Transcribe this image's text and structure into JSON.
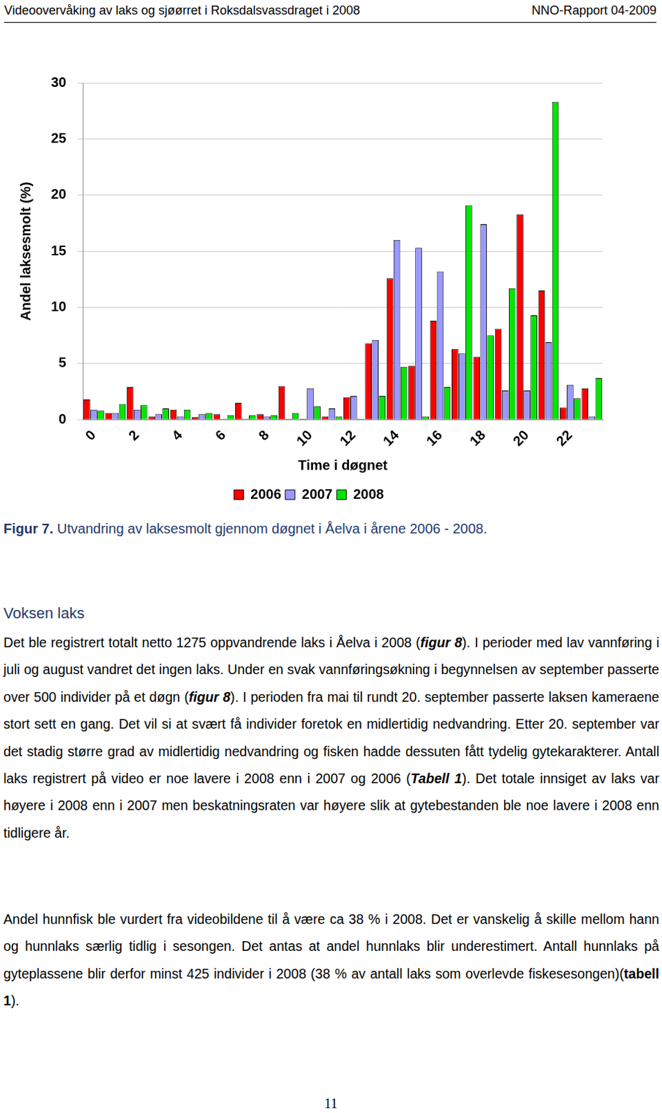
{
  "header": {
    "left": "Videoovervåking av laks og sjøørret i Roksdalsvassdraget i 2008",
    "right": "NNO-Rapport 04-2009"
  },
  "chart_data": {
    "type": "bar",
    "y_label": "Andel laksesmolt (%)",
    "x_label": "Time i døgnet",
    "categories": [
      0,
      null,
      2,
      null,
      4,
      null,
      6,
      null,
      8,
      null,
      10,
      null,
      12,
      null,
      14,
      null,
      16,
      null,
      18,
      null,
      20,
      null,
      22,
      null
    ],
    "series": [
      {
        "name": "2006",
        "color": "#ff0000",
        "values": [
          1.8,
          0.6,
          2.9,
          0.3,
          0.9,
          0.2,
          0.5,
          1.5,
          0.5,
          3.0,
          0.1,
          0.3,
          2.0,
          6.8,
          12.6,
          4.8,
          8.8,
          6.3,
          5.6,
          8.1,
          18.3,
          11.5,
          1.1,
          2.8
        ]
      },
      {
        "name": "2007",
        "color": "#9999ff",
        "values": [
          0.9,
          0.6,
          0.9,
          0.5,
          0.3,
          0.5,
          0.1,
          0.1,
          0.3,
          0.1,
          2.8,
          1.0,
          2.1,
          7.1,
          16.0,
          15.3,
          13.2,
          5.9,
          17.4,
          2.6,
          2.6,
          6.9,
          3.1,
          0.3
        ]
      },
      {
        "name": "2008",
        "color": "#00e600",
        "values": [
          0.8,
          1.4,
          1.3,
          1.0,
          0.9,
          0.6,
          0.4,
          0.4,
          0.4,
          0.6,
          1.2,
          0.3,
          0.1,
          2.1,
          4.7,
          0.3,
          2.9,
          19.1,
          7.5,
          11.7,
          9.3,
          28.3,
          1.9,
          3.7
        ]
      }
    ],
    "ylim": [
      0,
      30
    ],
    "yticks": [
      0,
      5,
      10,
      15,
      20,
      25,
      30
    ],
    "grid": true,
    "legend": "bottom"
  },
  "caption": {
    "label": "Figur 7.",
    "text": " Utvandring av laksesmolt gjennom døgnet i Åelva i årene 2006 - 2008."
  },
  "heading": "Voksen laks",
  "paragraphs": [
    [
      {
        "text": "Det ble registrert totalt netto 1275 oppvandrende laks i Åelva i 2008 ("
      },
      {
        "text": "figur 8",
        "style": "bold-italic"
      },
      {
        "text": "). I perioder med lav vannføring i juli og august vandret det ingen laks. Under en svak vannføringsøkning i begynnelsen av september passerte over 500 individer på et døgn ("
      },
      {
        "text": "figur 8",
        "style": "bold-italic"
      },
      {
        "text": "). I perioden fra mai til rundt 20. september passerte laksen kameraene stort sett en gang. Det vil si at svært få individer foretok en midlertidig nedvandring. Etter 20. september var det stadig større grad av midlertidig nedvandring og fisken hadde dessuten fått tydelig gytekarakterer. Antall laks registrert på video er noe lavere i 2008 enn i 2007 og 2006 ("
      },
      {
        "text": "Tabell 1",
        "style": "bold-italic"
      },
      {
        "text": "). Det totale innsiget av laks var høyere i 2008 enn i 2007 men beskatningsraten var høyere slik at gytebestanden ble noe lavere i 2008 enn tidligere år."
      }
    ],
    [
      {
        "text": "Andel hunnfisk ble vurdert fra videobildene til å være ca 38 % i 2008. Det er vanskelig å skille mellom hann og hunnlaks særlig tidlig i sesongen. Det antas at andel hunnlaks blir underestimert. Antall hunnlaks på gyteplassene blir derfor minst 425 individer i 2008 (38 % av antall laks som overlevde fiskesesongen)("
      },
      {
        "text": "tabell 1",
        "style": "bold"
      },
      {
        "text": ")."
      }
    ]
  ],
  "page_number": "11"
}
